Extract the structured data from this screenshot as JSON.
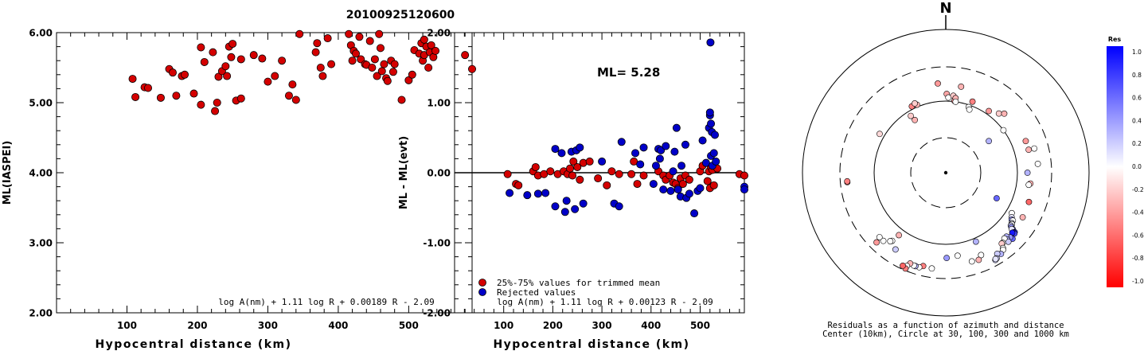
{
  "title": "20100925120600",
  "chart_data": [
    {
      "type": "scatter",
      "ylabel": "ML(IASPEI)",
      "xlabel": "Hypocentral distance (km)",
      "xlim": [
        0,
        590
      ],
      "ylim": [
        2.0,
        6.0
      ],
      "xticks": [
        "100",
        "200",
        "300",
        "400",
        "500"
      ],
      "yticks": [
        "2.00",
        "3.00",
        "4.00",
        "5.00",
        "6.00"
      ],
      "formula": "log A(nm) + 1.11 log R + 0.00189 R - 2.09",
      "color": "#d40000",
      "points": [
        [
          108,
          5.34
        ],
        [
          112,
          5.08
        ],
        [
          125,
          5.22
        ],
        [
          130,
          5.21
        ],
        [
          148,
          5.07
        ],
        [
          160,
          5.48
        ],
        [
          165,
          5.43
        ],
        [
          170,
          5.1
        ],
        [
          178,
          5.38
        ],
        [
          182,
          5.4
        ],
        [
          195,
          5.13
        ],
        [
          205,
          5.79
        ],
        [
          205,
          4.97
        ],
        [
          210,
          5.58
        ],
        [
          222,
          5.72
        ],
        [
          225,
          4.88
        ],
        [
          228,
          5.0
        ],
        [
          230,
          5.37
        ],
        [
          235,
          5.45
        ],
        [
          240,
          5.52
        ],
        [
          242,
          5.38
        ],
        [
          245,
          5.8
        ],
        [
          248,
          5.65
        ],
        [
          250,
          5.84
        ],
        [
          255,
          5.03
        ],
        [
          262,
          5.06
        ],
        [
          262,
          5.62
        ],
        [
          280,
          5.68
        ],
        [
          292,
          5.63
        ],
        [
          300,
          5.3
        ],
        [
          310,
          5.38
        ],
        [
          320,
          5.6
        ],
        [
          330,
          5.1
        ],
        [
          335,
          5.26
        ],
        [
          340,
          5.04
        ],
        [
          345,
          5.98
        ],
        [
          368,
          5.72
        ],
        [
          370,
          5.85
        ],
        [
          375,
          5.5
        ],
        [
          378,
          5.38
        ],
        [
          385,
          5.92
        ],
        [
          390,
          5.55
        ],
        [
          415,
          5.98
        ],
        [
          418,
          5.82
        ],
        [
          420,
          5.6
        ],
        [
          422,
          5.74
        ],
        [
          425,
          5.7
        ],
        [
          430,
          5.94
        ],
        [
          432,
          5.62
        ],
        [
          438,
          5.55
        ],
        [
          440,
          5.54
        ],
        [
          445,
          5.88
        ],
        [
          448,
          5.5
        ],
        [
          452,
          5.62
        ],
        [
          455,
          5.38
        ],
        [
          458,
          5.98
        ],
        [
          460,
          5.78
        ],
        [
          462,
          5.45
        ],
        [
          465,
          5.55
        ],
        [
          468,
          5.35
        ],
        [
          470,
          5.31
        ],
        [
          475,
          5.6
        ],
        [
          478,
          5.44
        ],
        [
          480,
          5.55
        ],
        [
          490,
          5.04
        ],
        [
          500,
          5.32
        ],
        [
          505,
          5.4
        ],
        [
          508,
          5.75
        ],
        [
          515,
          5.7
        ],
        [
          518,
          5.85
        ],
        [
          520,
          5.6
        ],
        [
          522,
          5.68
        ],
        [
          522,
          5.9
        ],
        [
          525,
          5.8
        ],
        [
          528,
          5.5
        ],
        [
          530,
          5.72
        ],
        [
          532,
          5.82
        ],
        [
          535,
          5.65
        ],
        [
          538,
          5.74
        ],
        [
          580,
          5.68
        ],
        [
          590,
          5.48
        ]
      ]
    },
    {
      "type": "scatter",
      "ylabel": "ML - ML(evt)",
      "xlabel": "Hypocentral distance (km)",
      "xlim": [
        0,
        590
      ],
      "ylim": [
        -2.0,
        2.0
      ],
      "xticks": [
        "100",
        "200",
        "300",
        "400",
        "500"
      ],
      "yticks": [
        "-2.00",
        "-1.00",
        "0.00",
        "1.00",
        "2.00"
      ],
      "annotation": "ML= 5.28",
      "formula": "log A(nm) + 1.11 log R + 0.00123 R - 2.09",
      "series": [
        {
          "name": "25%-75% values for trimmed mean",
          "color": "#d40000",
          "points": [
            [
              108,
              -0.02
            ],
            [
              125,
              -0.16
            ],
            [
              130,
              -0.18
            ],
            [
              160,
              0.02
            ],
            [
              165,
              0.08
            ],
            [
              170,
              -0.04
            ],
            [
              182,
              -0.02
            ],
            [
              195,
              0.02
            ],
            [
              210,
              -0.02
            ],
            [
              222,
              0.02
            ],
            [
              230,
              -0.02
            ],
            [
              235,
              0.06
            ],
            [
              240,
              -0.04
            ],
            [
              242,
              0.16
            ],
            [
              250,
              0.08
            ],
            [
              255,
              -0.1
            ],
            [
              262,
              0.14
            ],
            [
              275,
              0.16
            ],
            [
              292,
              -0.08
            ],
            [
              310,
              -0.18
            ],
            [
              320,
              0.02
            ],
            [
              335,
              -0.02
            ],
            [
              360,
              -0.02
            ],
            [
              365,
              0.16
            ],
            [
              372,
              -0.16
            ],
            [
              385,
              -0.04
            ],
            [
              415,
              0.02
            ],
            [
              425,
              -0.04
            ],
            [
              430,
              -0.1
            ],
            [
              438,
              -0.04
            ],
            [
              445,
              -0.14
            ],
            [
              450,
              -0.16
            ],
            [
              455,
              -0.22
            ],
            [
              460,
              -0.08
            ],
            [
              465,
              -0.16
            ],
            [
              470,
              -0.04
            ],
            [
              478,
              -0.1
            ],
            [
              500,
              0.02
            ],
            [
              505,
              0.1
            ],
            [
              515,
              -0.12
            ],
            [
              518,
              0.02
            ],
            [
              520,
              -0.22
            ],
            [
              522,
              0.08
            ],
            [
              525,
              0.04
            ],
            [
              528,
              -0.18
            ],
            [
              535,
              0.06
            ],
            [
              580,
              -0.02
            ],
            [
              590,
              -0.04
            ]
          ]
        },
        {
          "name": "Rejected values",
          "color": "#0000c8",
          "points": [
            [
              112,
              -0.29
            ],
            [
              148,
              -0.32
            ],
            [
              170,
              -0.3
            ],
            [
              185,
              -0.29
            ],
            [
              205,
              0.34
            ],
            [
              205,
              -0.48
            ],
            [
              218,
              0.28
            ],
            [
              225,
              -0.56
            ],
            [
              228,
              -0.4
            ],
            [
              238,
              0.3
            ],
            [
              245,
              -0.52
            ],
            [
              248,
              0.32
            ],
            [
              255,
              0.36
            ],
            [
              262,
              -0.44
            ],
            [
              300,
              0.16
            ],
            [
              325,
              -0.44
            ],
            [
              335,
              -0.48
            ],
            [
              340,
              0.44
            ],
            [
              368,
              0.28
            ],
            [
              378,
              0.12
            ],
            [
              385,
              0.36
            ],
            [
              405,
              -0.16
            ],
            [
              410,
              0.1
            ],
            [
              415,
              0.34
            ],
            [
              418,
              0.2
            ],
            [
              420,
              0.32
            ],
            [
              425,
              -0.24
            ],
            [
              430,
              0.38
            ],
            [
              440,
              -0.26
            ],
            [
              445,
              0.02
            ],
            [
              448,
              0.3
            ],
            [
              452,
              0.64
            ],
            [
              455,
              -0.24
            ],
            [
              460,
              -0.34
            ],
            [
              462,
              0.1
            ],
            [
              470,
              0.4
            ],
            [
              472,
              -0.36
            ],
            [
              478,
              -0.3
            ],
            [
              488,
              -0.58
            ],
            [
              495,
              -0.26
            ],
            [
              500,
              -0.22
            ],
            [
              505,
              0.46
            ],
            [
              512,
              0.14
            ],
            [
              518,
              0.64
            ],
            [
              520,
              0.82
            ],
            [
              520,
              0.86
            ],
            [
              521,
              1.86
            ],
            [
              522,
              0.24
            ],
            [
              522,
              0.7
            ],
            [
              524,
              0.58
            ],
            [
              525,
              0.1
            ],
            [
              528,
              0.28
            ],
            [
              530,
              0.54
            ],
            [
              532,
              0.16
            ],
            [
              590,
              -0.2
            ],
            [
              590,
              -0.24
            ]
          ]
        }
      ]
    },
    {
      "type": "polar-scatter",
      "north_label": "N",
      "caption_line1": "Residuals as a function of azimuth and distance",
      "caption_line2": "Center (10km), Circle at 30, 100, 300 and 1000 km",
      "colorbar_title": "Res",
      "colorbar_ticks": [
        "1.0",
        "0.8",
        "0.6",
        "0.4",
        "0.2",
        "0.0",
        "-0.2",
        "-0.4",
        "-0.6",
        "-0.8",
        "-1.0"
      ],
      "points": [
        [
          -5.1,
          1.25,
          -0.4
        ],
        [
          0.7,
          1.1,
          -0.35
        ],
        [
          2.0,
          1.05,
          0.0
        ],
        [
          5.6,
          1.08,
          -0.2
        ],
        [
          6.9,
          1.01,
          -0.4
        ],
        [
          7.5,
          1.05,
          -0.3
        ],
        [
          7.9,
          1.0,
          0.0
        ],
        [
          10.1,
          1.22,
          -0.3
        ],
        [
          -22.9,
          1.03,
          -0.3
        ],
        [
          -27.1,
          1.04,
          -0.5
        ],
        [
          -24.1,
          1.06,
          -0.2
        ],
        [
          -30.4,
          0.85,
          -0.3
        ],
        [
          -31.6,
          0.93,
          -0.2
        ],
        [
          -59.6,
          1.07,
          -0.15
        ],
        [
          -95.5,
          1.38,
          -0.5
        ],
        [
          19.2,
          0.97,
          0.0
        ],
        [
          20.5,
          0.94,
          0.0
        ],
        [
          20.6,
          1.06,
          -0.5
        ],
        [
          34.9,
          1.05,
          -0.4
        ],
        [
          41.9,
          1.11,
          -0.2
        ],
        [
          44.7,
          1.16,
          -0.3
        ],
        [
          53.6,
          1.0,
          0.0
        ],
        [
          53.7,
          0.74,
          0.3
        ],
        [
          68.4,
          1.2,
          -0.4
        ],
        [
          74.5,
          1.2,
          -0.3
        ],
        [
          74.7,
          1.28,
          0.0
        ],
        [
          84.5,
          1.29,
          0.0
        ],
        [
          90.0,
          1.14,
          0.3
        ],
        [
          97.3,
          1.19,
          -0.3
        ],
        [
          98.3,
          1.17,
          0.0
        ],
        [
          109.4,
          1.23,
          -0.6
        ],
        [
          116.7,
          0.79,
          0.6
        ],
        [
          120.1,
          1.24,
          -0.3
        ],
        [
          121.5,
          1.08,
          0.0
        ],
        [
          124.1,
          1.11,
          0.1
        ],
        [
          125.5,
          1.13,
          0.4
        ],
        [
          125.5,
          1.15,
          0.0
        ],
        [
          127.4,
          1.16,
          0.1
        ],
        [
          127.9,
          1.17,
          0.0
        ],
        [
          129.1,
          1.17,
          0.2
        ],
        [
          129.7,
          1.19,
          0.4
        ],
        [
          130.1,
          1.22,
          0.5
        ],
        [
          130.5,
          1.21,
          0.1
        ],
        [
          130.8,
          1.27,
          0.8
        ],
        [
          131.4,
          1.26,
          0.9
        ],
        [
          131.6,
          1.28,
          0.7
        ],
        [
          132.1,
          1.25,
          0.9
        ],
        [
          134.7,
          1.31,
          0.6
        ],
        [
          135.1,
          1.27,
          0.4
        ],
        [
          136.5,
          1.23,
          0.3
        ],
        [
          137.4,
          1.27,
          0.3
        ],
        [
          137.8,
          1.3,
          0.2
        ],
        [
          138.3,
          1.23,
          0.0
        ],
        [
          140.9,
          1.26,
          0.0
        ],
        [
          141.7,
          1.26,
          -0.2
        ],
        [
          142.8,
          1.32,
          0.0
        ],
        [
          143.4,
          1.34,
          0.0
        ],
        [
          145.8,
          1.37,
          0.3
        ],
        [
          147.6,
          1.34,
          0.2
        ],
        [
          149.3,
          1.39,
          0.2
        ],
        [
          150.4,
          1.4,
          0.2
        ],
        [
          150.0,
          1.39,
          0.1
        ],
        [
          156.4,
          1.05,
          0.3
        ],
        [
          156.8,
          1.25,
          0.0
        ],
        [
          159.3,
          1.3,
          -0.3
        ],
        [
          163.6,
          1.29,
          0.0
        ],
        [
          171.9,
          1.17,
          0.0
        ],
        [
          179.4,
          1.19,
          0.4
        ],
        [
          188.3,
          1.35,
          0.0
        ],
        [
          193.6,
          1.34,
          -0.5
        ],
        [
          195.7,
          1.37,
          0.0
        ],
        [
          198.0,
          1.37,
          0.3
        ],
        [
          199.0,
          1.37,
          0.0
        ],
        [
          201.4,
          1.36,
          -0.3
        ],
        [
          202.6,
          1.41,
          0.0
        ],
        [
          202.8,
          1.45,
          -0.5
        ],
        [
          204.8,
          1.43,
          -0.6
        ],
        [
          213.2,
          1.28,
          0.2
        ],
        [
          216.9,
          1.09,
          -0.3
        ],
        [
          218.2,
          1.21,
          0.0
        ],
        [
          219.0,
          1.23,
          0.0
        ],
        [
          222.5,
          1.29,
          0.0
        ],
        [
          224.8,
          1.37,
          -0.4
        ],
        [
          225.8,
          1.29,
          0.0
        ],
        [
          265.0,
          1.38,
          -0.5
        ]
      ]
    }
  ],
  "legend": [
    {
      "label": "25%-75% values for trimmed mean",
      "color": "#d40000"
    },
    {
      "label": "Rejected values",
      "color": "#0000c8"
    }
  ]
}
